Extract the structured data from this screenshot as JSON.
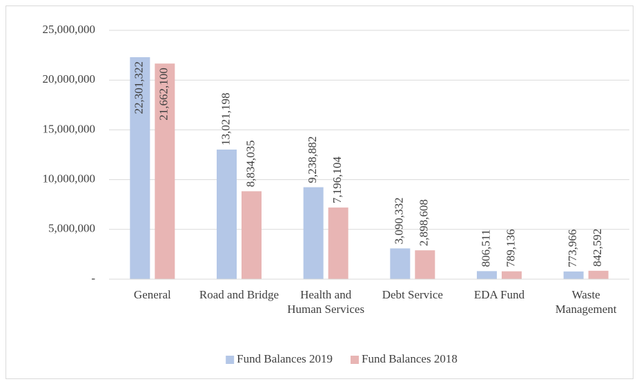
{
  "chart_data": {
    "type": "bar",
    "categories": [
      "General",
      "Road and Bridge",
      "Health and Human Services",
      "Debt Service",
      "EDA Fund",
      "Waste Management"
    ],
    "series": [
      {
        "name": "Fund Balances 2019",
        "color": "#b4c7e7",
        "values": [
          22301322,
          13021198,
          9238882,
          3090332,
          806511,
          773966
        ],
        "value_labels": [
          "22,301,322",
          "13,021,198",
          "9,238,882",
          "3,090,332",
          "806,511",
          "773,966"
        ]
      },
      {
        "name": "Fund Balances 2018",
        "color": "#e8b5b4",
        "values": [
          21662100,
          8834035,
          7196104,
          2898608,
          789136,
          842592
        ],
        "value_labels": [
          "21,662,100",
          "8,834,035",
          "7,196,104",
          "2,898,608",
          "789,136",
          "842,592"
        ]
      }
    ],
    "ylim": [
      0,
      25000000
    ],
    "yticks": [
      {
        "value": 0,
        "label": "-"
      },
      {
        "value": 5000000,
        "label": "5,000,000"
      },
      {
        "value": 10000000,
        "label": "10,000,000"
      },
      {
        "value": 15000000,
        "label": "15,000,000"
      },
      {
        "value": 20000000,
        "label": "20,000,000"
      },
      {
        "value": 25000000,
        "label": "25,000,000"
      }
    ],
    "grid": true,
    "legend": "bottom"
  }
}
